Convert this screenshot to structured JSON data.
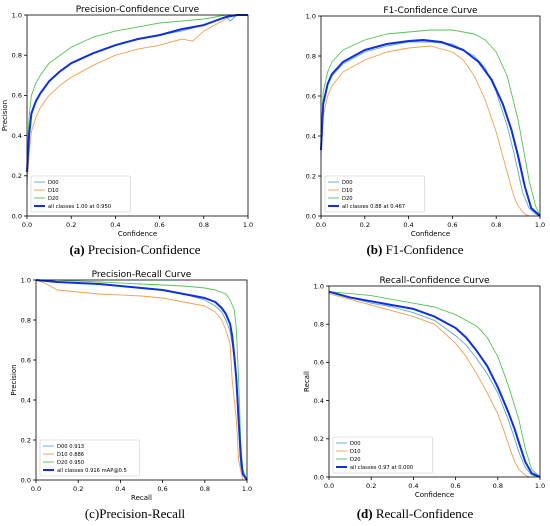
{
  "colors": {
    "D00": "#5fa8d3",
    "D10": "#f0a050",
    "D20": "#55c455",
    "all": "#1030d8"
  },
  "charts": [
    {
      "type": "line",
      "title": "Precision-Confidence Curve",
      "xlabel": "Confidence",
      "ylabel": "Precision",
      "xlim": [
        0,
        1
      ],
      "ylim": [
        0,
        1
      ],
      "xticks": [
        "0.0",
        "0.2",
        "0.4",
        "0.6",
        "0.8",
        "1.0"
      ],
      "yticks": [
        "0.0",
        "0.2",
        "0.4",
        "0.6",
        "0.8",
        "1.0"
      ],
      "legend_position": "lower-left",
      "series": [
        {
          "name": "D00",
          "color_key": "D00",
          "x": [
            0,
            0.01,
            0.02,
            0.04,
            0.06,
            0.08,
            0.1,
            0.15,
            0.2,
            0.3,
            0.4,
            0.5,
            0.6,
            0.7,
            0.8,
            0.85,
            0.88,
            0.9,
            0.92,
            0.95,
            1.0
          ],
          "y": [
            0.22,
            0.4,
            0.5,
            0.57,
            0.61,
            0.64,
            0.67,
            0.72,
            0.76,
            0.81,
            0.85,
            0.88,
            0.9,
            0.92,
            0.95,
            0.97,
            0.98,
            0.99,
            0.97,
            1.0,
            1.0
          ]
        },
        {
          "name": "D10",
          "color_key": "D10",
          "x": [
            0,
            0.01,
            0.02,
            0.04,
            0.06,
            0.08,
            0.1,
            0.15,
            0.2,
            0.3,
            0.4,
            0.5,
            0.6,
            0.7,
            0.75,
            0.8,
            0.85,
            0.9,
            0.93,
            0.95,
            1.0
          ],
          "y": [
            0.15,
            0.32,
            0.42,
            0.49,
            0.54,
            0.57,
            0.6,
            0.65,
            0.69,
            0.75,
            0.8,
            0.83,
            0.85,
            0.88,
            0.87,
            0.92,
            0.95,
            0.98,
            1.0,
            1.0,
            1.0
          ]
        },
        {
          "name": "D20",
          "color_key": "D20",
          "x": [
            0,
            0.01,
            0.02,
            0.04,
            0.06,
            0.08,
            0.1,
            0.15,
            0.2,
            0.3,
            0.4,
            0.5,
            0.6,
            0.7,
            0.8,
            0.85,
            0.9,
            0.95,
            1.0
          ],
          "y": [
            0.3,
            0.5,
            0.6,
            0.66,
            0.7,
            0.73,
            0.76,
            0.8,
            0.84,
            0.89,
            0.92,
            0.94,
            0.96,
            0.97,
            0.98,
            0.99,
            1.0,
            1.0,
            1.0
          ]
        },
        {
          "name": "all classes 1.00 at 0.950",
          "color_key": "all",
          "bold": true,
          "x": [
            0,
            0.01,
            0.02,
            0.04,
            0.06,
            0.08,
            0.1,
            0.15,
            0.2,
            0.3,
            0.4,
            0.5,
            0.6,
            0.7,
            0.8,
            0.85,
            0.9,
            0.95,
            1.0
          ],
          "y": [
            0.22,
            0.41,
            0.51,
            0.57,
            0.61,
            0.64,
            0.67,
            0.72,
            0.76,
            0.81,
            0.85,
            0.88,
            0.9,
            0.93,
            0.95,
            0.97,
            0.99,
            1.0,
            1.0
          ]
        }
      ]
    },
    {
      "type": "line",
      "title": "F1-Confidence Curve",
      "xlabel": "Confidence",
      "ylabel": "",
      "xlim": [
        0,
        1
      ],
      "ylim": [
        0,
        1
      ],
      "xticks": [
        "0.0",
        "0.2",
        "0.4",
        "0.6",
        "0.8",
        "1.0"
      ],
      "yticks": [
        "0.0",
        "0.2",
        "0.4",
        "0.6",
        "0.8",
        "1.0"
      ],
      "legend_position": "lower-left",
      "series": [
        {
          "name": "D00",
          "color_key": "D00",
          "x": [
            0,
            0.01,
            0.03,
            0.05,
            0.1,
            0.2,
            0.3,
            0.4,
            0.5,
            0.6,
            0.7,
            0.75,
            0.8,
            0.85,
            0.88,
            0.9,
            0.92,
            0.95,
            0.98,
            1.0
          ],
          "y": [
            0.33,
            0.55,
            0.65,
            0.7,
            0.76,
            0.82,
            0.85,
            0.87,
            0.87,
            0.86,
            0.8,
            0.74,
            0.62,
            0.45,
            0.32,
            0.22,
            0.12,
            0.04,
            0.01,
            0.0
          ]
        },
        {
          "name": "D10",
          "color_key": "D10",
          "x": [
            0,
            0.01,
            0.03,
            0.05,
            0.1,
            0.2,
            0.3,
            0.4,
            0.5,
            0.6,
            0.65,
            0.7,
            0.75,
            0.8,
            0.83,
            0.86,
            0.88,
            0.9,
            0.93,
            0.95
          ],
          "y": [
            0.3,
            0.5,
            0.6,
            0.65,
            0.72,
            0.78,
            0.82,
            0.84,
            0.85,
            0.82,
            0.78,
            0.7,
            0.58,
            0.42,
            0.3,
            0.18,
            0.1,
            0.05,
            0.01,
            0.0
          ]
        },
        {
          "name": "D20",
          "color_key": "D20",
          "x": [
            0,
            0.01,
            0.03,
            0.05,
            0.1,
            0.2,
            0.3,
            0.4,
            0.5,
            0.6,
            0.7,
            0.75,
            0.8,
            0.85,
            0.9,
            0.93,
            0.95,
            0.98,
            1.0
          ],
          "y": [
            0.38,
            0.62,
            0.72,
            0.77,
            0.83,
            0.88,
            0.91,
            0.92,
            0.93,
            0.93,
            0.91,
            0.88,
            0.82,
            0.7,
            0.48,
            0.3,
            0.18,
            0.05,
            0.0
          ]
        },
        {
          "name": "all classes 0.88 at 0.467",
          "color_key": "all",
          "bold": true,
          "x": [
            0,
            0.01,
            0.03,
            0.05,
            0.1,
            0.2,
            0.3,
            0.4,
            0.467,
            0.55,
            0.65,
            0.72,
            0.78,
            0.83,
            0.87,
            0.9,
            0.93,
            0.96,
            1.0
          ],
          "y": [
            0.33,
            0.56,
            0.66,
            0.71,
            0.77,
            0.83,
            0.86,
            0.875,
            0.88,
            0.87,
            0.83,
            0.77,
            0.68,
            0.56,
            0.43,
            0.3,
            0.15,
            0.04,
            0.0
          ]
        }
      ]
    },
    {
      "type": "line",
      "title": "Precision-Recall Curve",
      "xlabel": "Recall",
      "ylabel": "Precision",
      "xlim": [
        0,
        1
      ],
      "ylim": [
        0,
        1
      ],
      "xticks": [
        "0.0",
        "0.2",
        "0.4",
        "0.6",
        "0.8",
        "1.0"
      ],
      "yticks": [
        "0.0",
        "0.2",
        "0.4",
        "0.6",
        "0.8",
        "1.0"
      ],
      "legend_position": "lower-left",
      "series": [
        {
          "name": "D00 0.913",
          "color_key": "D00",
          "x": [
            0,
            0.1,
            0.3,
            0.5,
            0.6,
            0.7,
            0.8,
            0.85,
            0.88,
            0.9,
            0.92,
            0.93,
            0.94,
            0.95,
            0.96,
            0.97,
            1.0
          ],
          "y": [
            1.0,
            0.99,
            0.98,
            0.96,
            0.95,
            0.93,
            0.9,
            0.87,
            0.84,
            0.8,
            0.74,
            0.68,
            0.6,
            0.5,
            0.3,
            0.05,
            0.0
          ]
        },
        {
          "name": "D10 0.886",
          "color_key": "D10",
          "x": [
            0,
            0.05,
            0.1,
            0.3,
            0.5,
            0.6,
            0.7,
            0.8,
            0.85,
            0.88,
            0.9,
            0.92,
            0.93,
            0.95,
            0.96,
            0.98
          ],
          "y": [
            1.0,
            0.98,
            0.95,
            0.93,
            0.92,
            0.91,
            0.89,
            0.87,
            0.84,
            0.8,
            0.75,
            0.68,
            0.5,
            0.3,
            0.1,
            0.0
          ]
        },
        {
          "name": "D20 0.950",
          "color_key": "D20",
          "x": [
            0,
            0.1,
            0.3,
            0.5,
            0.7,
            0.8,
            0.85,
            0.9,
            0.92,
            0.94,
            0.95,
            0.96,
            0.97,
            0.98,
            1.0
          ],
          "y": [
            1.0,
            1.0,
            0.99,
            0.98,
            0.97,
            0.96,
            0.95,
            0.93,
            0.9,
            0.85,
            0.75,
            0.5,
            0.2,
            0.05,
            0.0
          ]
        },
        {
          "name": "all classes 0.916 mAP@0.5",
          "color_key": "all",
          "bold": true,
          "x": [
            0,
            0.1,
            0.3,
            0.5,
            0.6,
            0.7,
            0.8,
            0.85,
            0.88,
            0.9,
            0.92,
            0.93,
            0.94,
            0.95,
            0.96,
            0.97,
            0.98,
            1.0
          ],
          "y": [
            1.0,
            0.99,
            0.98,
            0.96,
            0.95,
            0.93,
            0.91,
            0.89,
            0.86,
            0.83,
            0.78,
            0.72,
            0.62,
            0.5,
            0.3,
            0.12,
            0.03,
            0.0
          ]
        }
      ]
    },
    {
      "type": "line",
      "title": "Recall-Confidence Curve",
      "xlabel": "Confidence",
      "ylabel": "Recall",
      "xlim": [
        0,
        1
      ],
      "ylim": [
        0,
        1
      ],
      "xticks": [
        "0.0",
        "0.2",
        "0.4",
        "0.6",
        "0.8",
        "1.0"
      ],
      "yticks": [
        "0.0",
        "0.2",
        "0.4",
        "0.6",
        "0.8",
        "1.0"
      ],
      "legend_position": "lower-left",
      "series": [
        {
          "name": "D00",
          "color_key": "D00",
          "x": [
            0,
            0.1,
            0.2,
            0.3,
            0.4,
            0.5,
            0.6,
            0.65,
            0.7,
            0.75,
            0.8,
            0.85,
            0.88,
            0.9,
            0.93,
            0.96,
            1.0
          ],
          "y": [
            0.97,
            0.94,
            0.91,
            0.89,
            0.86,
            0.82,
            0.74,
            0.69,
            0.62,
            0.54,
            0.44,
            0.3,
            0.2,
            0.13,
            0.05,
            0.01,
            0.0
          ]
        },
        {
          "name": "D10",
          "color_key": "D10",
          "x": [
            0,
            0.1,
            0.2,
            0.3,
            0.4,
            0.5,
            0.6,
            0.65,
            0.7,
            0.75,
            0.8,
            0.83,
            0.86,
            0.88,
            0.9,
            0.93,
            0.95
          ],
          "y": [
            0.96,
            0.93,
            0.9,
            0.87,
            0.84,
            0.8,
            0.7,
            0.63,
            0.54,
            0.44,
            0.33,
            0.24,
            0.14,
            0.08,
            0.04,
            0.01,
            0.0
          ]
        },
        {
          "name": "D20",
          "color_key": "D20",
          "x": [
            0,
            0.1,
            0.2,
            0.3,
            0.4,
            0.5,
            0.6,
            0.7,
            0.75,
            0.8,
            0.85,
            0.9,
            0.93,
            0.96,
            1.0
          ],
          "y": [
            0.97,
            0.96,
            0.95,
            0.93,
            0.91,
            0.89,
            0.85,
            0.79,
            0.73,
            0.63,
            0.48,
            0.3,
            0.15,
            0.04,
            0.0
          ]
        },
        {
          "name": "all classes 0.97 at 0.000",
          "color_key": "all",
          "bold": true,
          "x": [
            0,
            0.1,
            0.2,
            0.3,
            0.4,
            0.5,
            0.6,
            0.65,
            0.7,
            0.75,
            0.8,
            0.85,
            0.88,
            0.9,
            0.93,
            0.96,
            1.0
          ],
          "y": [
            0.97,
            0.94,
            0.92,
            0.9,
            0.88,
            0.84,
            0.78,
            0.73,
            0.66,
            0.58,
            0.47,
            0.34,
            0.25,
            0.18,
            0.08,
            0.02,
            0.0
          ]
        }
      ]
    }
  ],
  "captions": [
    {
      "label": "(a)",
      "text": " Precision-Confidence",
      "label_bold": true
    },
    {
      "label": "(b)",
      "text": " F1-Confidence",
      "label_bold": true
    },
    {
      "label": "(c)",
      "text": "Precision-Recall",
      "label_bold": false
    },
    {
      "label": "(d)",
      "text": " Recall-Confidence",
      "label_bold": true
    }
  ]
}
